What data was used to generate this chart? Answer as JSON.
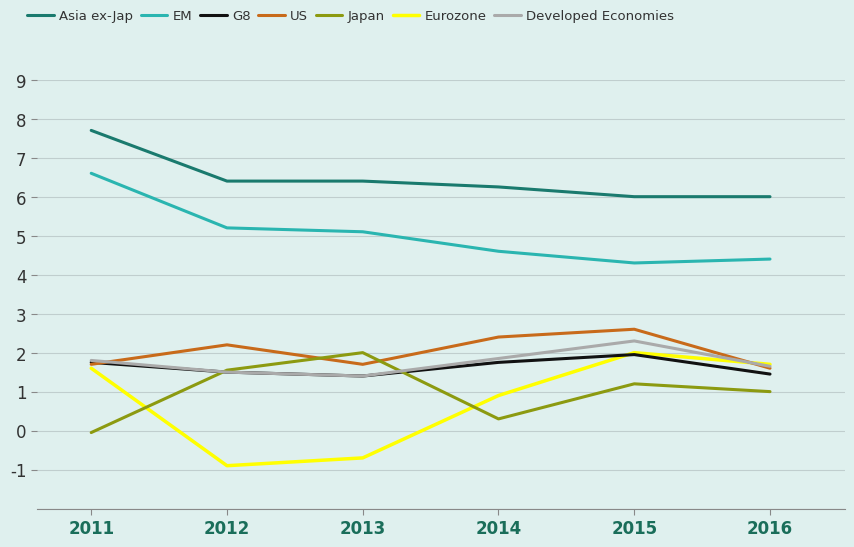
{
  "years": [
    2011,
    2012,
    2013,
    2014,
    2015,
    2016
  ],
  "series": {
    "Asia ex-Jap": {
      "values": [
        7.7,
        6.4,
        6.4,
        6.25,
        6.0,
        6.0
      ],
      "color": "#1a7a6e",
      "linewidth": 2.2,
      "zorder": 5
    },
    "EM": {
      "values": [
        6.6,
        5.2,
        5.1,
        4.6,
        4.3,
        4.4
      ],
      "color": "#2ab5b0",
      "linewidth": 2.2,
      "zorder": 4
    },
    "G8": {
      "values": [
        1.75,
        1.5,
        1.4,
        1.75,
        1.95,
        1.45
      ],
      "color": "#111111",
      "linewidth": 2.2,
      "zorder": 3
    },
    "US": {
      "values": [
        1.7,
        2.2,
        1.7,
        2.4,
        2.6,
        1.6
      ],
      "color": "#c86a1a",
      "linewidth": 2.2,
      "zorder": 3
    },
    "Japan": {
      "values": [
        -0.05,
        1.55,
        2.0,
        0.3,
        1.2,
        1.0
      ],
      "color": "#8c9a10",
      "linewidth": 2.2,
      "zorder": 3
    },
    "Eurozone": {
      "values": [
        1.6,
        -0.9,
        -0.7,
        0.9,
        2.0,
        1.7
      ],
      "color": "#ffff00",
      "linewidth": 2.5,
      "zorder": 2
    },
    "Developed Economies": {
      "values": [
        1.8,
        1.5,
        1.4,
        1.85,
        2.3,
        1.65
      ],
      "color": "#aaaaaa",
      "linewidth": 2.2,
      "zorder": 3
    }
  },
  "legend_order": [
    "Asia ex-Jap",
    "EM",
    "G8",
    "US",
    "Japan",
    "Eurozone",
    "Developed Economies"
  ],
  "ylim": [
    -2,
    9
  ],
  "yticks": [
    -1,
    0,
    1,
    2,
    3,
    4,
    5,
    6,
    7,
    8,
    9
  ],
  "ytick_labels": [
    "-1",
    "0",
    "1",
    "2",
    "3",
    "4",
    "5",
    "6",
    "7",
    "8",
    "9"
  ],
  "xlim": [
    2010.6,
    2016.55
  ],
  "background_color": "#dff0ee",
  "plot_bg_color": "#dff0ee",
  "grid_color": "#c0cece",
  "x_label_color": "#1a6e5a",
  "y_label_color": "#333333"
}
